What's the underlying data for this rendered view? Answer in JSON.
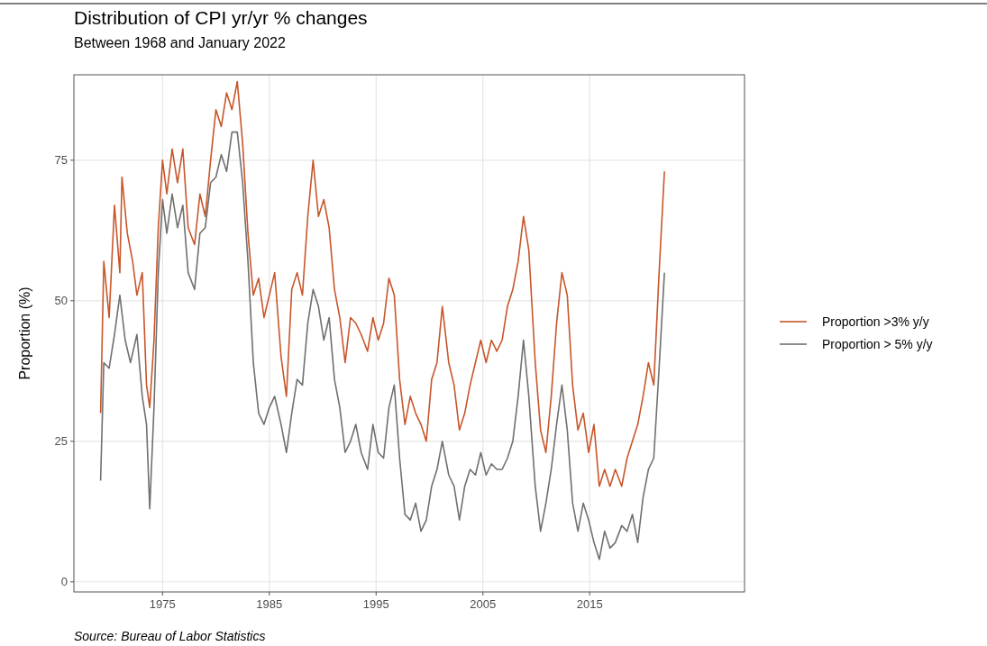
{
  "chart_data": {
    "type": "line",
    "title": "Distribution of CPI yr/yr % changes",
    "subtitle": "Between 1968 and January 2022",
    "ylabel": "Proportion (%)",
    "annotations": [
      "Source: Bureau of Labor Statistics"
    ],
    "xlim": [
      1966.7,
      2029.5
    ],
    "xticks": [
      1975,
      1985,
      1995,
      2005,
      2015
    ],
    "ylim": [
      -1.8,
      90.2
    ],
    "yticks": [
      0,
      25,
      50,
      75
    ],
    "grid": true,
    "legend": "right",
    "line_style": "solid",
    "series": [
      {
        "name": "Proportion >3% y/y",
        "color": "#c8562a",
        "x": [
          1969.2,
          1969.5,
          1970.0,
          1970.5,
          1971.0,
          1971.2,
          1971.7,
          1972.2,
          1972.6,
          1973.1,
          1973.5,
          1973.8,
          1974.2,
          1974.6,
          1975.0,
          1975.4,
          1975.9,
          1976.4,
          1976.9,
          1977.4,
          1978.0,
          1978.5,
          1979.0,
          1979.5,
          1980.0,
          1980.5,
          1981.0,
          1981.5,
          1982.0,
          1982.5,
          1983.0,
          1983.5,
          1984.0,
          1984.5,
          1985.0,
          1985.5,
          1986.1,
          1986.6,
          1987.1,
          1987.6,
          1988.1,
          1988.6,
          1989.1,
          1989.6,
          1990.1,
          1990.6,
          1991.1,
          1991.6,
          1992.1,
          1992.6,
          1993.1,
          1993.6,
          1994.2,
          1994.7,
          1995.2,
          1995.7,
          1996.2,
          1996.7,
          1997.2,
          1997.7,
          1998.2,
          1998.7,
          1999.2,
          1999.7,
          2000.2,
          2000.7,
          2001.2,
          2001.8,
          2002.3,
          2002.8,
          2003.3,
          2003.8,
          2004.3,
          2004.8,
          2005.3,
          2005.8,
          2006.3,
          2006.8,
          2007.3,
          2007.8,
          2008.3,
          2008.8,
          2009.3,
          2009.9,
          2010.4,
          2010.9,
          2011.4,
          2011.9,
          2012.4,
          2012.9,
          2013.4,
          2013.9,
          2014.4,
          2014.9,
          2015.4,
          2015.9,
          2016.4,
          2016.9,
          2017.4,
          2018.0,
          2018.5,
          2019.0,
          2019.5,
          2020.0,
          2020.5,
          2021.0,
          2021.5,
          2022.0
        ],
        "values": [
          30,
          57,
          47,
          67,
          55,
          72,
          62,
          57,
          51,
          55,
          35,
          31,
          43,
          63,
          75,
          69,
          77,
          71,
          77,
          63,
          60,
          69,
          65,
          75,
          84,
          81,
          87,
          84,
          89,
          78,
          62,
          51,
          54,
          47,
          51,
          55,
          40,
          33,
          52,
          55,
          51,
          65,
          75,
          65,
          68,
          63,
          52,
          47,
          39,
          47,
          46,
          44,
          41,
          47,
          43,
          46,
          54,
          51,
          36,
          28,
          33,
          30,
          28,
          25,
          36,
          39,
          49,
          39,
          35,
          27,
          30,
          35,
          39,
          43,
          39,
          43,
          41,
          43,
          49,
          52,
          57,
          65,
          59,
          39,
          27,
          23,
          33,
          46,
          55,
          51,
          35,
          27,
          30,
          23,
          28,
          17,
          20,
          17,
          20,
          17,
          22,
          25,
          28,
          33,
          39,
          35,
          55,
          73
        ]
      },
      {
        "name": "Proportion > 5% y/y",
        "color": "#707070",
        "x": [
          1969.2,
          1969.5,
          1970.0,
          1970.5,
          1971.0,
          1971.5,
          1972.0,
          1972.6,
          1973.1,
          1973.5,
          1973.8,
          1974.2,
          1974.6,
          1975.0,
          1975.4,
          1975.9,
          1976.4,
          1976.9,
          1977.4,
          1978.0,
          1978.5,
          1979.0,
          1979.5,
          1980.0,
          1980.5,
          1981.0,
          1981.5,
          1982.0,
          1982.5,
          1983.0,
          1983.5,
          1984.0,
          1984.5,
          1985.0,
          1985.5,
          1986.1,
          1986.6,
          1987.1,
          1987.6,
          1988.1,
          1988.6,
          1989.1,
          1989.6,
          1990.1,
          1990.6,
          1991.1,
          1991.6,
          1992.1,
          1992.6,
          1993.1,
          1993.6,
          1994.2,
          1994.7,
          1995.2,
          1995.7,
          1996.2,
          1996.7,
          1997.2,
          1997.7,
          1998.2,
          1998.7,
          1999.2,
          1999.7,
          2000.2,
          2000.7,
          2001.2,
          2001.8,
          2002.3,
          2002.8,
          2003.3,
          2003.8,
          2004.3,
          2004.8,
          2005.3,
          2005.8,
          2006.3,
          2006.8,
          2007.3,
          2007.8,
          2008.3,
          2008.8,
          2009.3,
          2009.9,
          2010.4,
          2010.9,
          2011.4,
          2011.9,
          2012.4,
          2012.9,
          2013.4,
          2013.9,
          2014.4,
          2014.9,
          2015.4,
          2015.9,
          2016.4,
          2016.9,
          2017.4,
          2018.0,
          2018.5,
          2019.0,
          2019.5,
          2020.0,
          2020.5,
          2021.0,
          2021.5,
          2022.0
        ],
        "values": [
          18,
          39,
          38,
          44,
          51,
          43,
          39,
          44,
          33,
          28,
          13,
          31,
          55,
          68,
          62,
          69,
          63,
          67,
          55,
          52,
          62,
          63,
          71,
          72,
          76,
          73,
          80,
          80,
          71,
          57,
          39,
          30,
          28,
          31,
          33,
          28,
          23,
          30,
          36,
          35,
          46,
          52,
          49,
          43,
          47,
          36,
          31,
          23,
          25,
          28,
          23,
          20,
          28,
          23,
          22,
          31,
          35,
          22,
          12,
          11,
          14,
          9,
          11,
          17,
          20,
          25,
          19,
          17,
          11,
          17,
          20,
          19,
          23,
          19,
          21,
          20,
          20,
          22,
          25,
          33,
          43,
          33,
          17,
          9,
          14,
          20,
          28,
          35,
          27,
          14,
          9,
          14,
          11,
          7,
          4,
          9,
          6,
          7,
          10,
          9,
          12,
          7,
          15,
          20,
          22,
          38,
          55
        ]
      }
    ]
  }
}
